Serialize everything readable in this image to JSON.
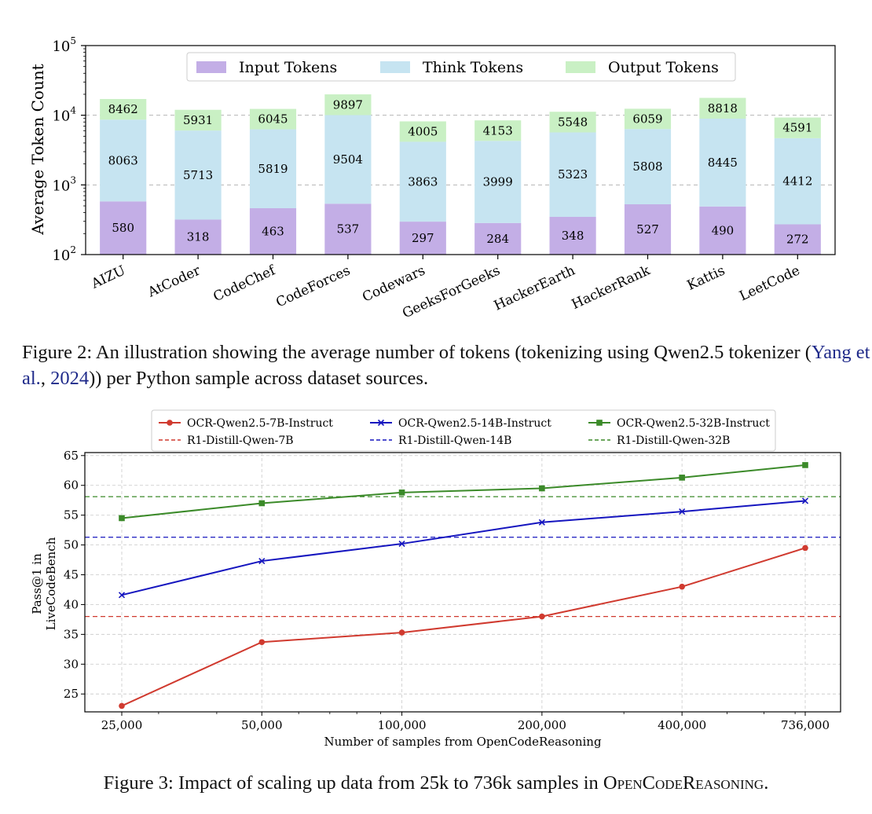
{
  "colors": {
    "input": "#c3aee6",
    "think": "#c6e4f1",
    "output": "#c9f0c4",
    "red": "#d03a2f",
    "blue": "#1515bf",
    "green": "#3b8a29"
  },
  "figure2": {
    "chart_data": {
      "type": "bar",
      "stacked": true,
      "yscale": "log",
      "ylabel": "Average Token Count",
      "ylim": [
        100,
        100000
      ],
      "ytick_labels": [
        {
          "value": 100,
          "base": "10",
          "exp": "2"
        },
        {
          "value": 1000,
          "base": "10",
          "exp": "3"
        },
        {
          "value": 10000,
          "base": "10",
          "exp": "4"
        },
        {
          "value": 100000,
          "base": "10",
          "exp": "5"
        }
      ],
      "grid": true,
      "legend_position": "top-center",
      "categories": [
        "AIZU",
        "AtCoder",
        "CodeChef",
        "CodeForces",
        "Codewars",
        "GeeksForGeeks",
        "HackerEarth",
        "HackerRank",
        "Kattis",
        "LeetCode"
      ],
      "series": [
        {
          "name": "Input Tokens",
          "color_key": "input",
          "values": [
            580,
            318,
            463,
            537,
            297,
            284,
            348,
            527,
            490,
            272
          ]
        },
        {
          "name": "Think Tokens",
          "color_key": "think",
          "values": [
            8063,
            5713,
            5819,
            9504,
            3863,
            3999,
            5323,
            5808,
            8445,
            4412
          ]
        },
        {
          "name": "Output Tokens",
          "color_key": "output",
          "values": [
            8462,
            5931,
            6045,
            9897,
            4005,
            4153,
            5548,
            6059,
            8818,
            4591
          ]
        }
      ]
    },
    "caption": {
      "prefix": "Figure 2: An illustration showing the average number of tokens (tokenizing using Qwen2.5 tokenizer (",
      "cite_author": "Yang et al.",
      "cite_sep": ", ",
      "cite_year": "2024",
      "suffix": ")) per Python sample across dataset sources."
    }
  },
  "figure3": {
    "chart_data": {
      "type": "line",
      "xscale": "log",
      "xlabel": "Number of samples from OpenCodeReasoning",
      "ylabel_line1": "Pass@1 in",
      "ylabel_line2": "LiveCodeBench",
      "x": [
        25000,
        50000,
        100000,
        200000,
        400000,
        736000
      ],
      "x_tick_labels": [
        "25,000",
        "50,000",
        "100,000",
        "200,000",
        "400,000",
        "736,000"
      ],
      "ylim": [
        22,
        65.5
      ],
      "y_ticks": [
        25,
        30,
        35,
        40,
        45,
        50,
        55,
        60,
        65
      ],
      "grid": true,
      "legend_position": "top-center",
      "series": [
        {
          "name": "OCR-Qwen2.5-7B-Instruct",
          "color_key": "red",
          "marker": "circle",
          "values": [
            23.0,
            33.7,
            35.3,
            38.0,
            43.0,
            49.5
          ]
        },
        {
          "name": "OCR-Qwen2.5-14B-Instruct",
          "color_key": "blue",
          "marker": "x",
          "values": [
            41.6,
            47.3,
            50.2,
            53.8,
            55.6,
            57.4
          ]
        },
        {
          "name": "OCR-Qwen2.5-32B-Instruct",
          "color_key": "green",
          "marker": "square",
          "values": [
            54.5,
            57.0,
            58.8,
            59.5,
            61.3,
            63.4
          ]
        }
      ],
      "reference_lines": [
        {
          "name": "R1-Distill-Qwen-7B",
          "color_key": "red",
          "value": 38.0
        },
        {
          "name": "R1-Distill-Qwen-14B",
          "color_key": "blue",
          "value": 51.3
        },
        {
          "name": "R1-Distill-Qwen-32B",
          "color_key": "green",
          "value": 58.1
        }
      ]
    },
    "caption": {
      "prefix": "Figure 3: Impact of scaling up data from 25k to 736k samples in ",
      "name": "OpenCodeReasoning",
      "suffix": "."
    }
  }
}
